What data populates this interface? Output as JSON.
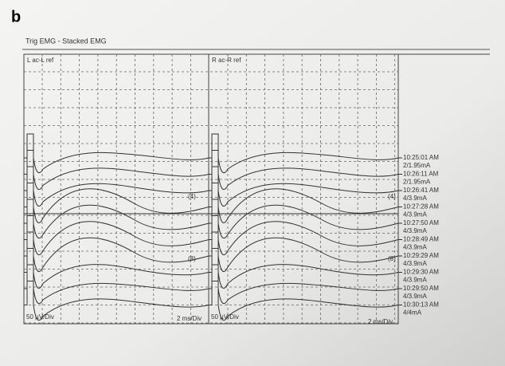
{
  "panel_label": "b",
  "window_title": "Trig EMG - Stacked EMG",
  "left_panel": {
    "channel": "L ac-L ref",
    "markers": [
      "(4)",
      "(8)"
    ],
    "scale_y": "50 µV/Div",
    "scale_x": "2 ms/Div"
  },
  "right_panel": {
    "channel": "R ac-R ref",
    "markers": [
      "(4)",
      "(8)"
    ],
    "scale_y": "50 µV/Div",
    "scale_x": "2 ms/Div"
  },
  "trace_labels": [
    {
      "time": "10:25:01 AM",
      "stim": "2/1.95mA"
    },
    {
      "time": "10:26:11 AM",
      "stim": "2/1.95mA"
    },
    {
      "time": "10:26:41 AM",
      "stim": "4/3.9mA"
    },
    {
      "time": "10:27:28 AM",
      "stim": "4/3.9mA"
    },
    {
      "time": "10:27:50 AM",
      "stim": "4/3.9mA"
    },
    {
      "time": "10:28:49 AM",
      "stim": "4/3.9mA"
    },
    {
      "time": "10:29:29 AM",
      "stim": "4/3.9mA"
    },
    {
      "time": "10:29:30 AM",
      "stim": "4/3.9mA"
    },
    {
      "time": "10:29:50 AM",
      "stim": "4/3.9mA"
    },
    {
      "time": "10:30:13 AM",
      "stim": "4/4mA"
    }
  ]
}
